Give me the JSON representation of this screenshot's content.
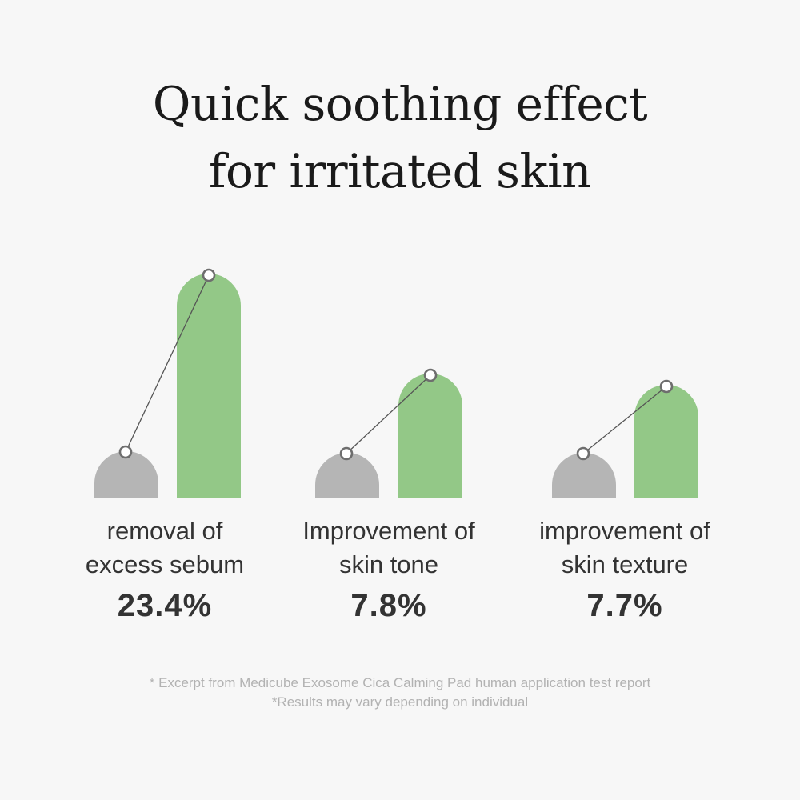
{
  "title_lines": [
    "Quick soothing effect",
    "for irritated skin"
  ],
  "chart_data": {
    "type": "bar",
    "categories": [
      [
        "removal of",
        "excess sebum"
      ],
      [
        "Improvement of",
        "skin tone"
      ],
      [
        "improvement of",
        "skin texture"
      ]
    ],
    "improvement_labels": [
      "23.4%",
      "7.8%",
      "7.7%"
    ],
    "improvement_percent": [
      23.4,
      7.8,
      7.7
    ],
    "bars": [
      {
        "before": 58,
        "after": 280
      },
      {
        "before": 56,
        "after": 155
      },
      {
        "before": 56,
        "after": 141
      }
    ],
    "colors": {
      "before": "#b5b5b5",
      "after": "#93c887",
      "line": "#555555",
      "marker_fill": "#ffffff",
      "marker_stroke": "#6e6e6e"
    },
    "legend": "none",
    "grid": false
  },
  "footnote_lines": [
    "* Excerpt from Medicube Exosome Cica Calming Pad human application test report",
    "*Results may vary depending on individual"
  ]
}
